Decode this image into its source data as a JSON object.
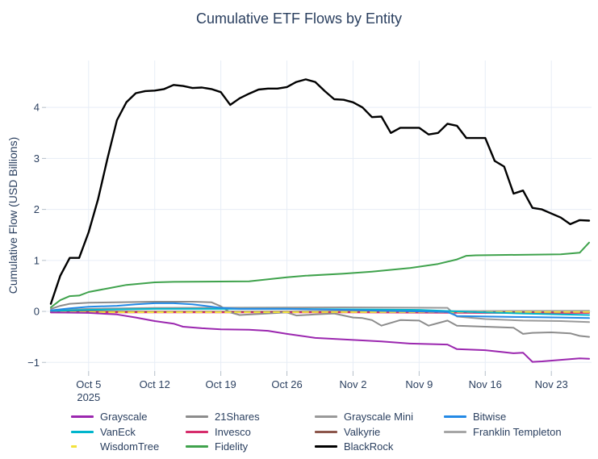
{
  "title": "Cumulative ETF Flows by Entity",
  "y_axis": {
    "label": "Cumulative Flow (USD Billions)",
    "ticks": [
      {
        "label": "−1",
        "value": -1
      },
      {
        "label": "0",
        "value": 0
      },
      {
        "label": "1",
        "value": 1
      },
      {
        "label": "2",
        "value": 2
      },
      {
        "label": "3",
        "value": 3
      },
      {
        "label": "4",
        "value": 4
      }
    ]
  },
  "x_axis": {
    "ticks": [
      {
        "label": "Oct 5",
        "sublabel": "2025",
        "day": 4
      },
      {
        "label": "Oct 12",
        "sublabel": "",
        "day": 11
      },
      {
        "label": "Oct 19",
        "sublabel": "",
        "day": 18
      },
      {
        "label": "Oct 26",
        "sublabel": "",
        "day": 25
      },
      {
        "label": "Nov 2",
        "sublabel": "",
        "day": 32
      },
      {
        "label": "Nov 9",
        "sublabel": "",
        "day": 39
      },
      {
        "label": "Nov 16",
        "sublabel": "",
        "day": 46
      },
      {
        "label": "Nov 23",
        "sublabel": "",
        "day": 53
      }
    ]
  },
  "colors": {
    "text": "#2a3f5f",
    "grid": "#e7edf6",
    "tick_mark": "#b5bfc9",
    "background": "#ffffff"
  },
  "chart_data": {
    "type": "line",
    "title": "Cumulative ETF Flows by Entity",
    "xlabel": "",
    "ylabel": "Cumulative Flow (USD Billions)",
    "x_unit": "days since Oct 1 2025",
    "xlim": [
      0,
      57
    ],
    "ylim": [
      -1.17,
      4.92
    ],
    "grid": true,
    "legend_position": "bottom",
    "series": [
      {
        "name": "Grayscale",
        "color": "#9b27af",
        "dash": false,
        "points": [
          [
            0,
            -0.02
          ],
          [
            4,
            -0.03
          ],
          [
            7,
            -0.06
          ],
          [
            9,
            -0.12
          ],
          [
            11,
            -0.19
          ],
          [
            13,
            -0.24
          ],
          [
            14,
            -0.3
          ],
          [
            16,
            -0.33
          ],
          [
            18,
            -0.35
          ],
          [
            21,
            -0.36
          ],
          [
            23,
            -0.38
          ],
          [
            25,
            -0.44
          ],
          [
            28,
            -0.52
          ],
          [
            31,
            -0.55
          ],
          [
            35,
            -0.59
          ],
          [
            38,
            -0.63
          ],
          [
            42,
            -0.65
          ],
          [
            43,
            -0.74
          ],
          [
            46,
            -0.76
          ],
          [
            48,
            -0.8
          ],
          [
            49,
            -0.82
          ],
          [
            50,
            -0.81
          ],
          [
            51,
            -0.99
          ],
          [
            52,
            -0.98
          ],
          [
            54,
            -0.95
          ],
          [
            56,
            -0.92
          ],
          [
            57,
            -0.93
          ]
        ]
      },
      {
        "name": "21Shares",
        "color": "#8c8c8c",
        "dash": false,
        "points": [
          [
            0,
            0.05
          ],
          [
            1,
            0.11
          ],
          [
            2,
            0.15
          ],
          [
            4,
            0.17
          ],
          [
            7,
            0.18
          ],
          [
            11,
            0.19
          ],
          [
            15,
            0.19
          ],
          [
            17,
            0.18
          ],
          [
            18,
            0.1
          ],
          [
            19,
            -0.02
          ],
          [
            20,
            -0.07
          ],
          [
            22,
            -0.05
          ],
          [
            25,
            -0.02
          ],
          [
            26,
            -0.08
          ],
          [
            28,
            -0.06
          ],
          [
            30,
            -0.04
          ],
          [
            32,
            -0.12
          ],
          [
            33,
            -0.13
          ],
          [
            34,
            -0.17
          ],
          [
            35,
            -0.28
          ],
          [
            37,
            -0.17
          ],
          [
            39,
            -0.18
          ],
          [
            40,
            -0.28
          ],
          [
            42,
            -0.18
          ],
          [
            43,
            -0.28
          ],
          [
            46,
            -0.3
          ],
          [
            49,
            -0.32
          ],
          [
            50,
            -0.44
          ],
          [
            51,
            -0.42
          ],
          [
            53,
            -0.41
          ],
          [
            55,
            -0.43
          ],
          [
            56,
            -0.48
          ],
          [
            57,
            -0.5
          ]
        ]
      },
      {
        "name": "Grayscale Mini",
        "color": "#999999",
        "dash": false,
        "points": [
          [
            0,
            0.02
          ],
          [
            4,
            0.05
          ],
          [
            11,
            0.07
          ],
          [
            31,
            0.08
          ],
          [
            42,
            0.07
          ],
          [
            43,
            -0.1
          ],
          [
            46,
            -0.15
          ],
          [
            50,
            -0.18
          ],
          [
            54,
            -0.19
          ],
          [
            57,
            -0.21
          ]
        ]
      },
      {
        "name": "Bitwise",
        "color": "#2389e5",
        "dash": false,
        "points": [
          [
            0,
            0.02
          ],
          [
            2,
            0.06
          ],
          [
            4,
            0.09
          ],
          [
            7,
            0.11
          ],
          [
            9,
            0.14
          ],
          [
            11,
            0.16
          ],
          [
            13,
            0.16
          ],
          [
            15,
            0.14
          ],
          [
            18,
            0.07
          ],
          [
            20,
            0.05
          ],
          [
            25,
            0.05
          ],
          [
            31,
            0.03
          ],
          [
            35,
            0.01
          ],
          [
            39,
            0.0
          ],
          [
            42,
            -0.01
          ],
          [
            43,
            -0.09
          ],
          [
            46,
            -0.1
          ],
          [
            50,
            -0.11
          ],
          [
            54,
            -0.12
          ],
          [
            57,
            -0.13
          ]
        ]
      },
      {
        "name": "VanEck",
        "color": "#00b5cc",
        "dash": false,
        "points": [
          [
            0,
            0.01
          ],
          [
            4,
            0.03
          ],
          [
            11,
            0.05
          ],
          [
            18,
            0.05
          ],
          [
            25,
            0.05
          ],
          [
            32,
            0.04
          ],
          [
            39,
            0.03
          ],
          [
            43,
            0.0
          ],
          [
            46,
            -0.02
          ],
          [
            50,
            -0.04
          ],
          [
            54,
            -0.06
          ],
          [
            57,
            -0.07
          ]
        ]
      },
      {
        "name": "Invesco",
        "color": "#d62c6b",
        "dash": false,
        "points": [
          [
            0,
            -0.02
          ],
          [
            18,
            -0.02
          ],
          [
            32,
            -0.02
          ],
          [
            46,
            -0.03
          ],
          [
            57,
            -0.03
          ]
        ]
      },
      {
        "name": "Valkyrie",
        "color": "#8c564b",
        "dash": false,
        "points": [
          [
            0,
            0.0
          ],
          [
            18,
            -0.01
          ],
          [
            40,
            -0.01
          ],
          [
            57,
            -0.02
          ]
        ]
      },
      {
        "name": "Franklin Templeton",
        "color": "#a6a6a6",
        "dash": false,
        "points": [
          [
            0,
            -0.005
          ],
          [
            20,
            0.0
          ],
          [
            40,
            0.005
          ],
          [
            57,
            0.015
          ]
        ]
      },
      {
        "name": "WisdomTree",
        "color": "#f2e23b",
        "dash": true,
        "points": [
          [
            0,
            -0.015
          ],
          [
            20,
            -0.015
          ],
          [
            40,
            -0.012
          ],
          [
            57,
            -0.012
          ]
        ]
      },
      {
        "name": "Fidelity",
        "color": "#3fa24c",
        "dash": false,
        "points": [
          [
            0,
            0.08
          ],
          [
            1,
            0.22
          ],
          [
            2,
            0.3
          ],
          [
            3,
            0.31
          ],
          [
            4,
            0.38
          ],
          [
            6,
            0.45
          ],
          [
            8,
            0.52
          ],
          [
            11,
            0.57
          ],
          [
            13,
            0.58
          ],
          [
            21,
            0.59
          ],
          [
            22,
            0.61
          ],
          [
            25,
            0.67
          ],
          [
            27,
            0.7
          ],
          [
            31,
            0.74
          ],
          [
            34,
            0.78
          ],
          [
            38,
            0.85
          ],
          [
            41,
            0.93
          ],
          [
            43,
            1.02
          ],
          [
            44,
            1.09
          ],
          [
            45,
            1.1
          ],
          [
            54,
            1.12
          ],
          [
            56,
            1.15
          ],
          [
            57,
            1.35
          ]
        ]
      },
      {
        "name": "BlackRock",
        "color": "#000000",
        "dash": false,
        "points": [
          [
            0,
            0.15
          ],
          [
            1,
            0.7
          ],
          [
            2,
            1.05
          ],
          [
            3,
            1.05
          ],
          [
            4,
            1.55
          ],
          [
            5,
            2.2
          ],
          [
            6,
            3.0
          ],
          [
            7,
            3.75
          ],
          [
            8,
            4.1
          ],
          [
            9,
            4.28
          ],
          [
            10,
            4.32
          ],
          [
            11,
            4.33
          ],
          [
            12,
            4.36
          ],
          [
            13,
            4.44
          ],
          [
            14,
            4.42
          ],
          [
            15,
            4.38
          ],
          [
            16,
            4.39
          ],
          [
            17,
            4.36
          ],
          [
            18,
            4.3
          ],
          [
            19,
            4.05
          ],
          [
            20,
            4.18
          ],
          [
            21,
            4.27
          ],
          [
            22,
            4.35
          ],
          [
            23,
            4.37
          ],
          [
            24,
            4.37
          ],
          [
            25,
            4.4
          ],
          [
            26,
            4.5
          ],
          [
            27,
            4.55
          ],
          [
            28,
            4.5
          ],
          [
            29,
            4.32
          ],
          [
            30,
            4.16
          ],
          [
            31,
            4.15
          ],
          [
            32,
            4.1
          ],
          [
            33,
            4.0
          ],
          [
            34,
            3.81
          ],
          [
            35,
            3.82
          ],
          [
            36,
            3.5
          ],
          [
            37,
            3.6
          ],
          [
            38,
            3.6
          ],
          [
            39,
            3.6
          ],
          [
            40,
            3.47
          ],
          [
            41,
            3.5
          ],
          [
            42,
            3.68
          ],
          [
            43,
            3.64
          ],
          [
            44,
            3.4
          ],
          [
            45,
            3.4
          ],
          [
            46,
            3.4
          ],
          [
            47,
            2.95
          ],
          [
            48,
            2.84
          ],
          [
            49,
            2.31
          ],
          [
            50,
            2.37
          ],
          [
            51,
            2.03
          ],
          [
            52,
            2.0
          ],
          [
            53,
            1.92
          ],
          [
            54,
            1.84
          ],
          [
            55,
            1.71
          ],
          [
            56,
            1.79
          ],
          [
            57,
            1.78
          ]
        ]
      }
    ]
  },
  "legend": {
    "items": [
      {
        "label": "Grayscale",
        "series": "Grayscale",
        "col": 0,
        "row": 0
      },
      {
        "label": "21Shares",
        "series": "21Shares",
        "col": 1,
        "row": 0
      },
      {
        "label": "Grayscale Mini",
        "series": "Grayscale Mini",
        "col": 2,
        "row": 0
      },
      {
        "label": "Bitwise",
        "series": "Bitwise",
        "col": 3,
        "row": 0
      },
      {
        "label": "VanEck",
        "series": "VanEck",
        "col": 0,
        "row": 1
      },
      {
        "label": "Invesco",
        "series": "Invesco",
        "col": 1,
        "row": 1
      },
      {
        "label": "Valkyrie",
        "series": "Valkyrie",
        "col": 2,
        "row": 1
      },
      {
        "label": "Franklin Templeton",
        "series": "Franklin Templeton",
        "col": 3,
        "row": 1
      },
      {
        "label": "WisdomTree",
        "series": "WisdomTree",
        "col": 0,
        "row": 2
      },
      {
        "label": "Fidelity",
        "series": "Fidelity",
        "col": 1,
        "row": 2
      },
      {
        "label": "BlackRock",
        "series": "BlackRock",
        "col": 2,
        "row": 2
      }
    ]
  }
}
